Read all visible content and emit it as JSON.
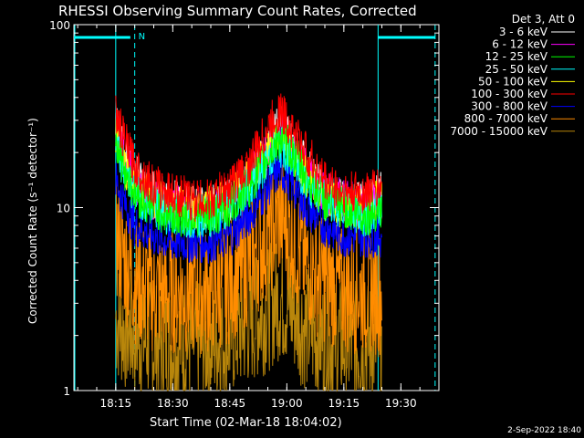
{
  "chart_data": {
    "type": "line",
    "title": "RHESSI Observing Summary Count Rates, Corrected",
    "xlabel": "Start Time (02-Mar-18 18:04:02)",
    "ylabel": "Corrected Count Rate (s⁻¹ detector⁻¹)",
    "yscale": "log",
    "xlim": [
      "18:04",
      "19:40"
    ],
    "ylim": [
      1,
      100
    ],
    "x_ticks": [
      "18:15",
      "18:30",
      "18:45",
      "19:00",
      "19:15",
      "19:30"
    ],
    "y_ticks": [
      "1",
      "10",
      "100"
    ],
    "legend_header": "Det 3, Att 0",
    "legend_position": "top-right",
    "timestamp": "2-Sep-2022 18:40",
    "annotations": {
      "night_label": "N",
      "night_start_line": "18:15",
      "night_end_dashed": "18:20",
      "night2_start_line": "19:24",
      "night2_end_dashed": "19:39"
    },
    "series": [
      {
        "name": "3 - 6 keV",
        "color": "#ffffff",
        "x": [
          "18:15",
          "18:17",
          "18:20",
          "18:25",
          "18:30",
          "18:35",
          "18:40",
          "18:45",
          "18:50",
          "18:55",
          "18:58",
          "19:00",
          "19:05",
          "19:10",
          "19:15",
          "19:20",
          "19:25"
        ],
        "values": [
          30,
          20,
          15,
          12,
          11,
          10,
          10,
          11,
          14,
          22,
          28,
          25,
          17,
          12,
          11,
          11,
          12
        ]
      },
      {
        "name": "6 - 12 keV",
        "color": "#ff00ff",
        "x": [
          "18:15",
          "18:17",
          "18:20",
          "18:25",
          "18:30",
          "18:35",
          "18:40",
          "18:45",
          "18:50",
          "18:55",
          "18:58",
          "19:00",
          "19:05",
          "19:10",
          "19:15",
          "19:20",
          "19:25"
        ],
        "values": [
          28,
          20,
          14,
          11,
          10,
          10,
          10,
          11,
          14,
          21,
          27,
          24,
          16,
          12,
          11,
          10,
          11
        ]
      },
      {
        "name": "12 - 25 keV",
        "color": "#00ff00",
        "x": [
          "18:15",
          "18:17",
          "18:20",
          "18:25",
          "18:30",
          "18:35",
          "18:40",
          "18:45",
          "18:50",
          "18:55",
          "18:58",
          "19:00",
          "19:05",
          "19:10",
          "19:15",
          "19:20",
          "19:25"
        ],
        "values": [
          24,
          17,
          12,
          10,
          9,
          9,
          9,
          10,
          13,
          19,
          24,
          22,
          15,
          11,
          10,
          9,
          10
        ]
      },
      {
        "name": "25 - 50 keV",
        "color": "#00ffff",
        "x": [
          "18:15",
          "18:17",
          "18:20",
          "18:25",
          "18:30",
          "18:35",
          "18:40",
          "18:45",
          "18:50",
          "18:55",
          "18:58",
          "19:00",
          "19:05",
          "19:10",
          "19:15",
          "19:20",
          "19:25"
        ],
        "values": [
          22,
          16,
          12,
          10,
          9,
          9,
          9,
          10,
          13,
          18,
          22,
          20,
          14,
          11,
          10,
          9,
          10
        ]
      },
      {
        "name": "50 - 100 keV",
        "color": "#ffff00",
        "x": [
          "18:15",
          "18:17",
          "18:20",
          "18:25",
          "18:30",
          "18:35",
          "18:40",
          "18:45",
          "18:50",
          "18:55",
          "18:58",
          "19:00",
          "19:05",
          "19:10",
          "19:15",
          "19:20",
          "19:25"
        ],
        "values": [
          26,
          18,
          13,
          11,
          10,
          10,
          10,
          11,
          14,
          20,
          26,
          23,
          15,
          11,
          10,
          10,
          11
        ]
      },
      {
        "name": "100 - 300 keV",
        "color": "#ff0000",
        "x": [
          "18:15",
          "18:17",
          "18:20",
          "18:25",
          "18:30",
          "18:35",
          "18:40",
          "18:45",
          "18:50",
          "18:55",
          "18:58",
          "19:00",
          "19:05",
          "19:10",
          "19:15",
          "19:20",
          "19:25"
        ],
        "values": [
          32,
          24,
          17,
          13,
          12,
          11,
          11,
          13,
          17,
          27,
          34,
          30,
          20,
          14,
          12,
          12,
          13
        ]
      },
      {
        "name": "300 - 800 keV",
        "color": "#0000ff",
        "x": [
          "18:15",
          "18:17",
          "18:20",
          "18:25",
          "18:30",
          "18:35",
          "18:40",
          "18:45",
          "18:50",
          "18:55",
          "18:58",
          "19:00",
          "19:05",
          "19:10",
          "19:15",
          "19:20",
          "19:25"
        ],
        "values": [
          14,
          11,
          8,
          7,
          6.5,
          6.5,
          6.5,
          7,
          9,
          13,
          16,
          15,
          10,
          8,
          7,
          7,
          7
        ]
      },
      {
        "name": "800 - 7000 keV",
        "color": "#ff8c00",
        "x": [
          "18:15",
          "18:17",
          "18:20",
          "18:25",
          "18:30",
          "18:35",
          "18:40",
          "18:45",
          "18:50",
          "18:55",
          "18:58",
          "19:00",
          "19:05",
          "19:10",
          "19:15",
          "19:20",
          "19:25"
        ],
        "values": [
          7,
          5.5,
          4,
          3.5,
          3.5,
          3.5,
          3.5,
          4,
          5,
          7,
          9,
          8,
          5,
          4,
          3.5,
          3.5,
          3.5
        ]
      },
      {
        "name": "7000 - 15000 keV",
        "color": "#b8860b",
        "x": [
          "18:15",
          "18:17",
          "18:20",
          "18:25",
          "18:30",
          "18:35",
          "18:40",
          "18:45",
          "18:50",
          "18:55",
          "18:58",
          "19:00",
          "19:05",
          "19:10",
          "19:15",
          "19:20",
          "19:25"
        ],
        "values": [
          2.5,
          2.2,
          2,
          1.8,
          1.8,
          1.8,
          1.8,
          2,
          2.3,
          2.8,
          3.2,
          3,
          2.2,
          1.9,
          1.8,
          1.8,
          1.8
        ]
      }
    ]
  }
}
